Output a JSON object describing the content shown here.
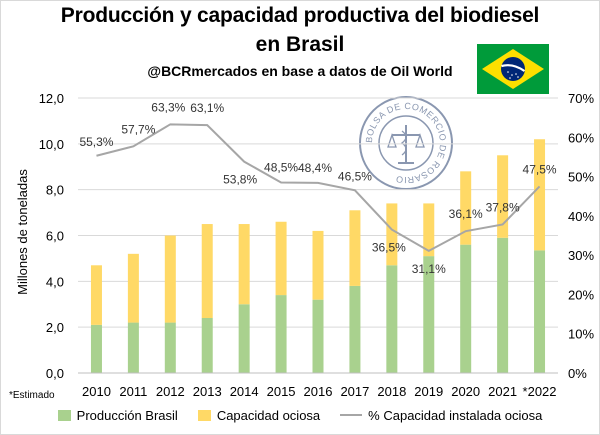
{
  "header": {
    "title_line1": "Producción y capacidad productiva del biodiesel",
    "title_line2": "en Brasil",
    "subtitle": "@BCRmercados en base a datos de Oil World"
  },
  "footnote": "*Estimado",
  "seal": {
    "text": "BOLSA DE COMERCIO DE ROSARIO",
    "color": "#8a97b0"
  },
  "flag": {
    "icon": "brazil-flag-icon",
    "green": "#009b3a",
    "yellow": "#fedf00",
    "blue": "#002776"
  },
  "colors": {
    "production": "#a9d18e",
    "idle": "#ffd966",
    "line": "#a6a6a6"
  },
  "chart_data": {
    "type": "bar",
    "stacked": true,
    "categories": [
      "2010",
      "2011",
      "2012",
      "2013",
      "2014",
      "2015",
      "2016",
      "2017",
      "2018",
      "2019",
      "2020",
      "2021",
      "*2022"
    ],
    "series": [
      {
        "name": "Producción Brasil",
        "axis": "left",
        "values": [
          2.1,
          2.2,
          2.2,
          2.4,
          3.0,
          3.4,
          3.2,
          3.8,
          4.7,
          5.1,
          5.6,
          5.9,
          5.35
        ]
      },
      {
        "name": "Capacidad ociosa",
        "axis": "left",
        "values": [
          2.6,
          3.0,
          3.8,
          4.1,
          3.5,
          3.2,
          3.0,
          3.3,
          2.7,
          2.3,
          3.2,
          3.6,
          4.85
        ]
      },
      {
        "name": "% Capacidad instalada ociosa",
        "type": "line",
        "axis": "right",
        "values": [
          55.3,
          57.7,
          63.3,
          63.1,
          53.8,
          48.5,
          48.4,
          46.5,
          36.5,
          31.1,
          36.1,
          37.8,
          47.5
        ],
        "labels": [
          "55,3%",
          "57,7%",
          "63,3%",
          "63,1%",
          "53,8%",
          "48,5%",
          "48,4%",
          "46,5%",
          "36,5%",
          "31,1%",
          "36,1%",
          "37,8%",
          "47,5%"
        ]
      }
    ],
    "ylabel": "Millones de toneladas",
    "ylim": [
      0,
      12
    ],
    "yticks": [
      "0,0",
      "2,0",
      "4,0",
      "6,0",
      "8,0",
      "10,0",
      "12,0"
    ],
    "y2lim": [
      0,
      70
    ],
    "y2ticks": [
      "0%",
      "10%",
      "20%",
      "30%",
      "40%",
      "50%",
      "60%",
      "70%"
    ],
    "grid": true,
    "legend_position": "bottom"
  }
}
